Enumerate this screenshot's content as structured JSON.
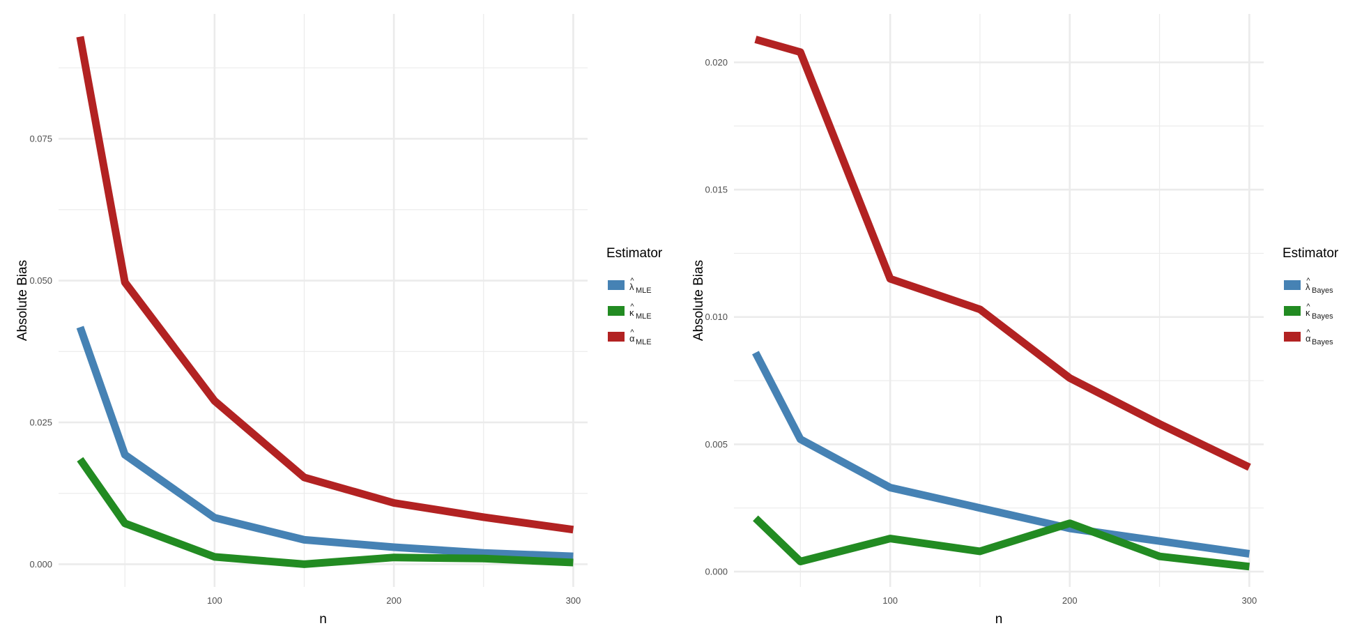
{
  "colors": {
    "lambda": "#4682B4",
    "kappa": "#228B22",
    "alpha": "#B22222",
    "grid": "#ebebeb"
  },
  "chart_data": [
    {
      "type": "line",
      "title": "",
      "xlabel": "n",
      "ylabel": "Absolute Bias",
      "x": [
        25,
        50,
        100,
        150,
        200,
        250,
        300
      ],
      "xticks": [
        100,
        200,
        300
      ],
      "xtick_labels": [
        "100",
        "200",
        "300"
      ],
      "xlim": [
        13,
        308
      ],
      "ylim": [
        -0.004,
        0.097
      ],
      "yticks": [
        0.0,
        0.025,
        0.05,
        0.075
      ],
      "ytick_labels": [
        "0.000",
        "0.025",
        "0.050",
        "0.075"
      ],
      "grid": true,
      "legend": {
        "title": "Estimator",
        "placement": "right",
        "entries": [
          {
            "symbol": "λ",
            "subscript": "MLE",
            "color_key": "lambda"
          },
          {
            "symbol": "κ",
            "subscript": "MLE",
            "color_key": "kappa"
          },
          {
            "symbol": "α",
            "subscript": "MLE",
            "color_key": "alpha"
          }
        ]
      },
      "series": [
        {
          "color_key": "lambda",
          "values": [
            0.0418,
            0.0193,
            0.0082,
            0.0043,
            0.003,
            0.002,
            0.0014
          ]
        },
        {
          "color_key": "kappa",
          "values": [
            0.0185,
            0.0072,
            0.0013,
            0.0,
            0.0012,
            0.001,
            0.0003
          ]
        },
        {
          "color_key": "alpha",
          "values": [
            0.093,
            0.0497,
            0.0288,
            0.0153,
            0.0108,
            0.0083,
            0.0061
          ]
        }
      ]
    },
    {
      "type": "line",
      "title": "",
      "xlabel": "n",
      "ylabel": "Absolute Bias",
      "x": [
        25,
        50,
        100,
        150,
        200,
        250,
        300
      ],
      "xticks": [
        100,
        200,
        300
      ],
      "xtick_labels": [
        "100",
        "200",
        "300"
      ],
      "xlim": [
        13,
        308
      ],
      "ylim": [
        -0.0006,
        0.0219
      ],
      "yticks": [
        0.0,
        0.005,
        0.01,
        0.015,
        0.02
      ],
      "ytick_labels": [
        "0.000",
        "0.005",
        "0.010",
        "0.015",
        "0.020"
      ],
      "grid": true,
      "legend": {
        "title": "Estimator",
        "placement": "right",
        "entries": [
          {
            "symbol": "λ",
            "subscript": "Bayes",
            "color_key": "lambda"
          },
          {
            "symbol": "κ",
            "subscript": "Bayes",
            "color_key": "kappa"
          },
          {
            "symbol": "α",
            "subscript": "Bayes",
            "color_key": "alpha"
          }
        ]
      },
      "series": [
        {
          "color_key": "lambda",
          "values": [
            0.0086,
            0.0052,
            0.0033,
            0.0025,
            0.0017,
            0.0012,
            0.0007
          ]
        },
        {
          "color_key": "kappa",
          "values": [
            0.0021,
            0.0004,
            0.0013,
            0.0008,
            0.0019,
            0.0006,
            0.0002
          ]
        },
        {
          "color_key": "alpha",
          "values": [
            0.0209,
            0.0204,
            0.0115,
            0.0103,
            0.0076,
            0.0058,
            0.0041
          ]
        }
      ]
    }
  ]
}
